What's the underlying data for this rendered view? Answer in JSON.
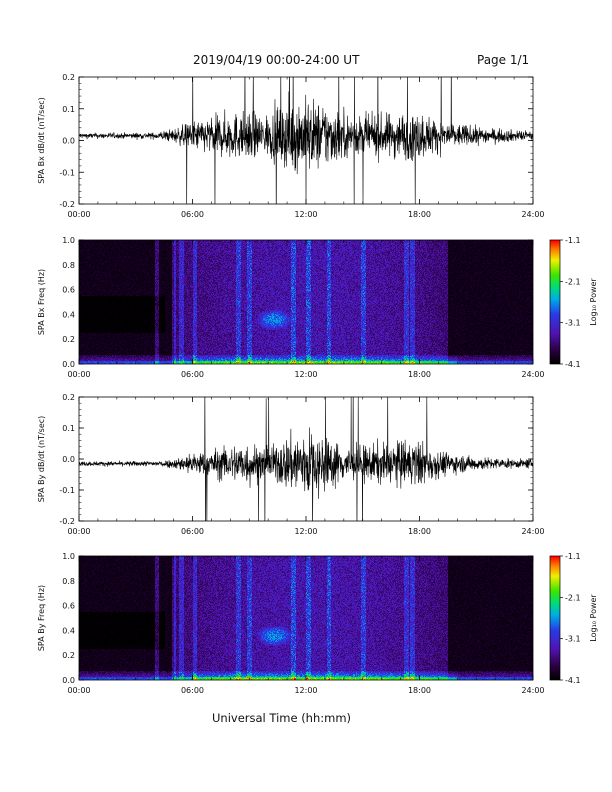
{
  "header": {
    "title": "2019/04/19   00:00-24:00 UT",
    "page": "Page 1/1"
  },
  "xaxis_label": "Universal Time (hh:mm)",
  "chart_data": [
    {
      "type": "line",
      "ylabel": "SPA Bx dB/dt (nT/sec)",
      "x_ticks": [
        "00:00",
        "06:00",
        "12:00",
        "18:00",
        "24:00"
      ],
      "xlim_hours": [
        0,
        24
      ],
      "ylim": [
        -0.2,
        0.2
      ],
      "y_ticks": [
        -0.2,
        -0.1,
        0.0,
        0.1,
        0.2
      ],
      "series": [
        {
          "x_hours": [
            0,
            2,
            4,
            5,
            6,
            7,
            8,
            9,
            10,
            11,
            12,
            13,
            14,
            15,
            16,
            17,
            18,
            19,
            20,
            21,
            22,
            23,
            24
          ],
          "amplitude_envelope": [
            0.012,
            0.012,
            0.014,
            0.03,
            0.06,
            0.08,
            0.1,
            0.1,
            0.09,
            0.15,
            0.16,
            0.14,
            0.1,
            0.08,
            0.09,
            0.1,
            0.1,
            0.07,
            0.05,
            0.04,
            0.03,
            0.025,
            0.02
          ],
          "offset": 0.015
        }
      ]
    },
    {
      "type": "heatmap",
      "ylabel": "SPA Bx Freq (Hz)",
      "x_ticks": [
        "00:00",
        "06:00",
        "12:00",
        "18:00",
        "24:00"
      ],
      "xlim_hours": [
        0,
        24
      ],
      "ylim": [
        0,
        1.0
      ],
      "y_ticks": [
        0.0,
        0.2,
        0.4,
        0.6,
        0.8,
        1.0
      ],
      "colorbar": {
        "label": "Log₁₀ Power",
        "min": -4.1,
        "max": -1.1,
        "ticks": [
          -4.1,
          -3.1,
          -2.1,
          -1.1
        ]
      }
    },
    {
      "type": "line",
      "ylabel": "SPA By dB/dt (nT/sec)",
      "x_ticks": [
        "00:00",
        "06:00",
        "12:00",
        "18:00",
        "24:00"
      ],
      "xlim_hours": [
        0,
        24
      ],
      "ylim": [
        -0.2,
        0.2
      ],
      "y_ticks": [
        -0.2,
        -0.1,
        0.0,
        0.1,
        0.2
      ],
      "series": [
        {
          "x_hours": [
            0,
            2,
            4,
            5,
            6,
            7,
            8,
            9,
            10,
            11,
            12,
            13,
            14,
            15,
            16,
            17,
            18,
            19,
            20,
            21,
            22,
            23,
            24
          ],
          "amplitude_envelope": [
            0.01,
            0.01,
            0.012,
            0.02,
            0.05,
            0.06,
            0.08,
            0.1,
            0.06,
            0.12,
            0.16,
            0.12,
            0.08,
            0.08,
            0.09,
            0.1,
            0.1,
            0.06,
            0.04,
            0.03,
            0.025,
            0.02,
            0.02
          ],
          "offset": -0.015
        }
      ]
    },
    {
      "type": "heatmap",
      "ylabel": "SPA By Freq (Hz)",
      "x_ticks": [
        "00:00",
        "06:00",
        "12:00",
        "18:00",
        "24:00"
      ],
      "xlim_hours": [
        0,
        24
      ],
      "ylim": [
        0,
        1.0
      ],
      "y_ticks": [
        0.0,
        0.2,
        0.4,
        0.6,
        0.8,
        1.0
      ],
      "colorbar": {
        "label": "Log₁₀ Power",
        "min": -4.1,
        "max": -1.1,
        "ticks": [
          -4.1,
          -3.1,
          -2.1,
          -1.1
        ]
      }
    }
  ]
}
